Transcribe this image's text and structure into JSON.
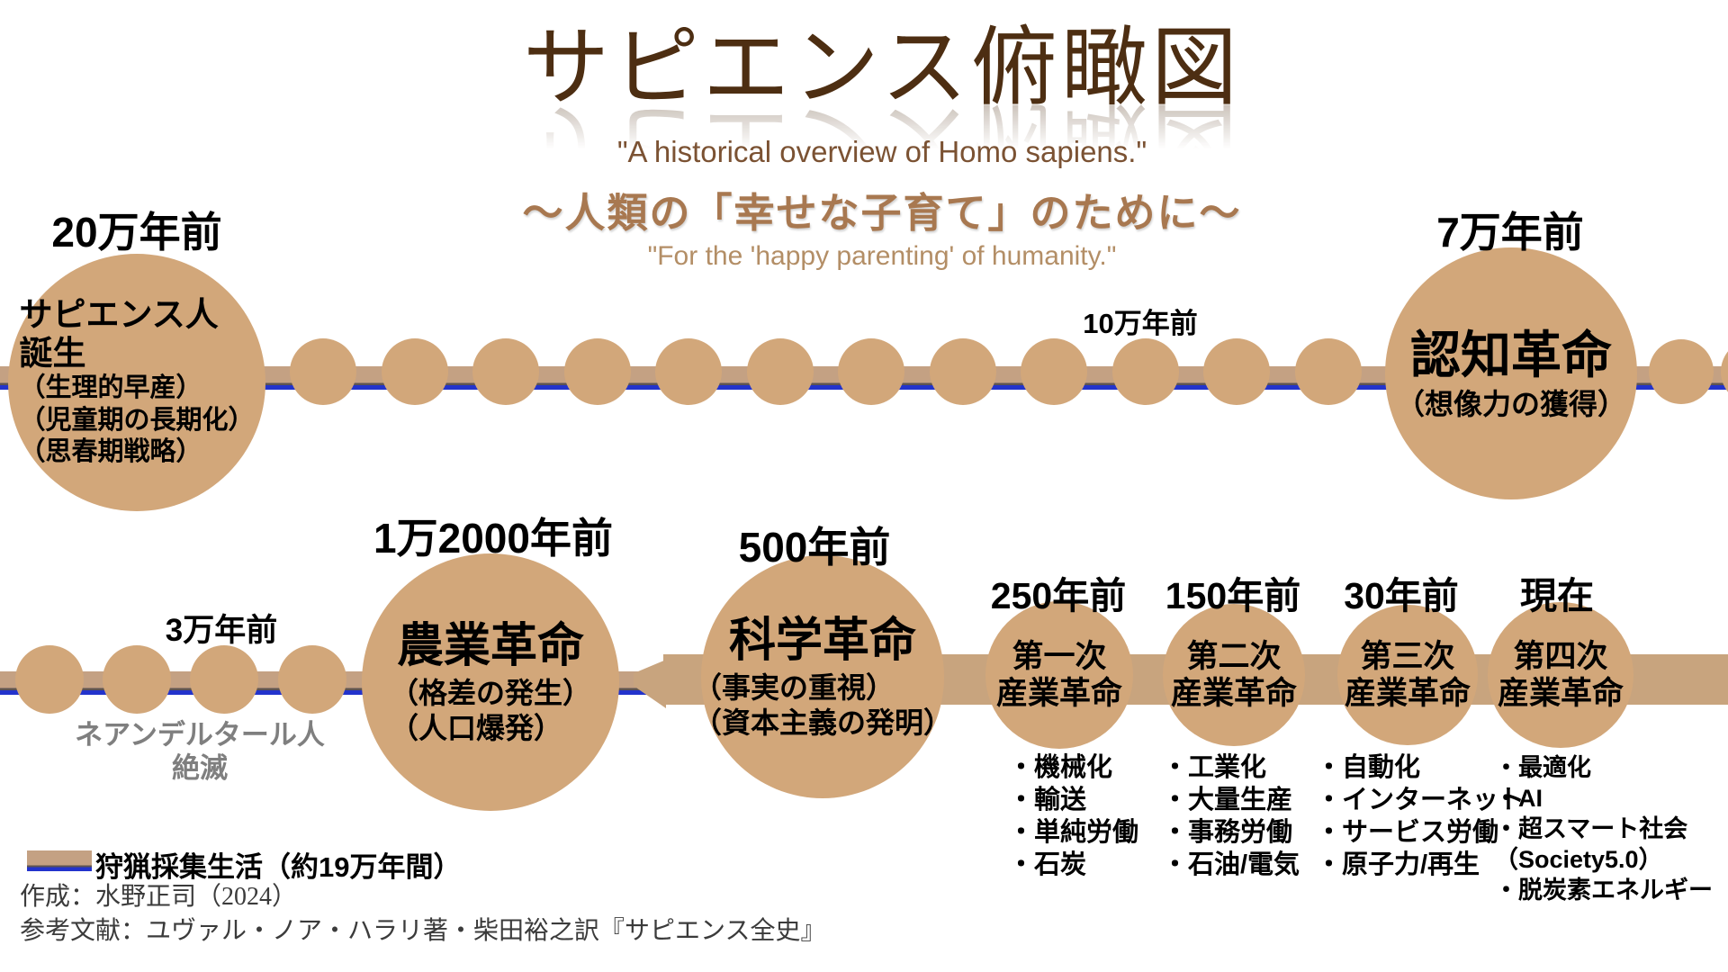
{
  "header": {
    "title": "サピエンス俯瞰図",
    "subtitle_en": "\"A historical overview of Homo sapiens.\"",
    "subtitle_jp": "～人類の「幸せな子育て」のために～",
    "subtitle_en2": "\"For the 'happy parenting' of humanity.\""
  },
  "colors": {
    "circle_tan": "#D2A77A",
    "bar_thin": "#C4A183",
    "bar_thick": "#C8A47E",
    "hunter_gatherer_line_blue": "#2333CC",
    "title_brown": "#4D2E12",
    "subtitle_brown": "#A87850",
    "neanderthal_gray": "#7F7F7F"
  },
  "timeline_top": {
    "label_left": "20万年前",
    "label_mid": "10万年前",
    "label_right": "7万年前",
    "dot_count": 12,
    "tail_dot_count": 2,
    "event_left_lines": [
      "サピエンス人",
      "誕生",
      "（生理的早産）",
      "（児童期の長期化）",
      "（思春期戦略）"
    ],
    "event_right": {
      "title": "認知革命",
      "sub": "（想像力の獲得）"
    }
  },
  "timeline_bottom": {
    "label_3man": "3万年前",
    "neanderthal_lines": [
      "ネアンデルタール人",
      "絶滅"
    ],
    "dot_count": 4,
    "agri": {
      "era": "1万2000年前",
      "title": "農業革命",
      "subs": [
        "（格差の発生）",
        "（人口爆発）"
      ]
    },
    "sci": {
      "era": "500年前",
      "title": "科学革命",
      "subs": [
        "（事実の重視）",
        "（資本主義の発明）"
      ]
    },
    "industrial": [
      {
        "era": "250年前",
        "lines": [
          "第一次",
          "産業革命"
        ],
        "bullets": [
          "・機械化",
          "・輸送",
          "・単純労働",
          "・石炭"
        ]
      },
      {
        "era": "150年前",
        "lines": [
          "第二次",
          "産業革命"
        ],
        "bullets": [
          "・工業化",
          "・大量生産",
          "・事務労働",
          "・石油/電気"
        ]
      },
      {
        "era": "30年前",
        "lines": [
          "第三次",
          "産業革命"
        ],
        "bullets": [
          "・自動化",
          "・インターネット",
          "・サービス労働",
          "・原子力/再生"
        ]
      },
      {
        "era": "現在",
        "lines": [
          "第四次",
          "産業革命"
        ],
        "bullets": [
          "・最適化",
          "・AI",
          "・超スマート社会",
          "（Society5.0）",
          "・脱炭素エネルギー"
        ]
      }
    ]
  },
  "legend": {
    "label": "狩猟採集生活（約19万年間）"
  },
  "credits": {
    "line1": "作成：水野正司（2024）",
    "line2": "参考文献：ユヴァル・ノア・ハラリ著・柴田裕之訳『サピエンス全史』"
  }
}
